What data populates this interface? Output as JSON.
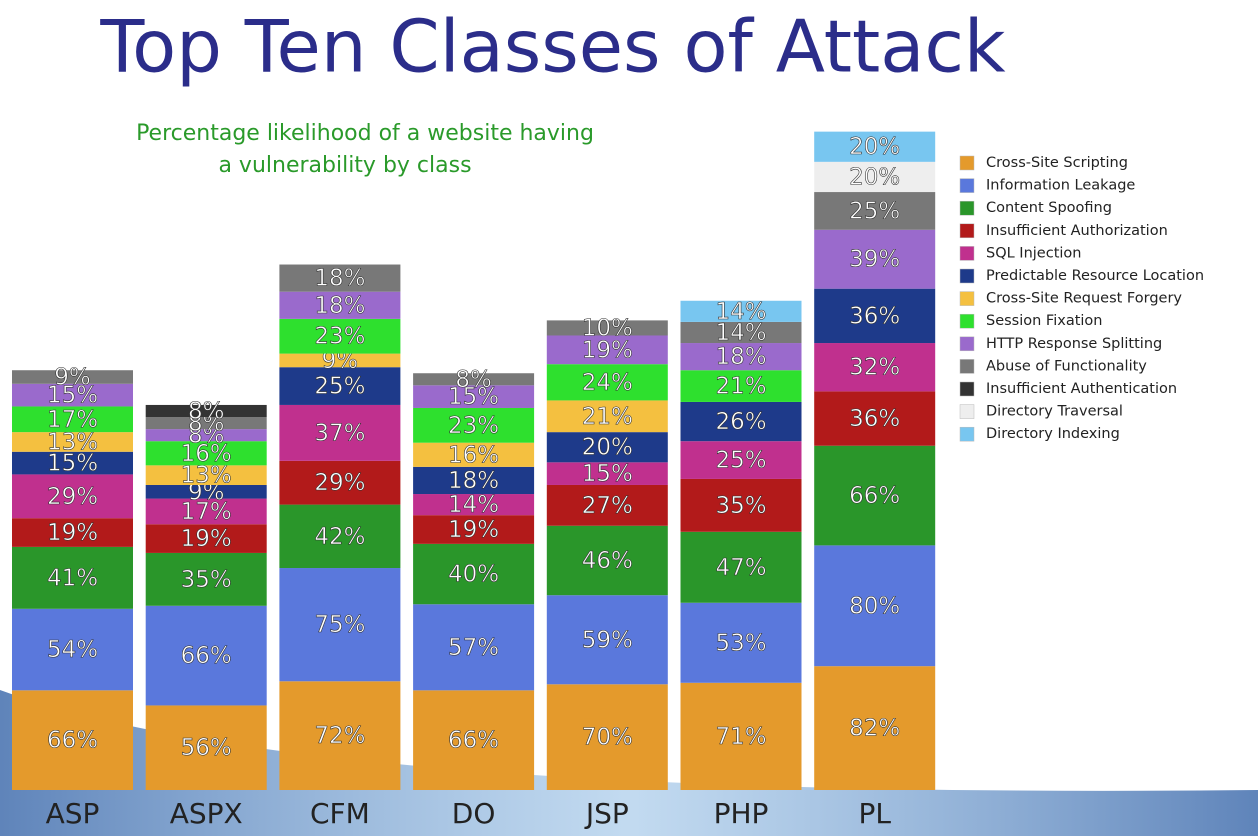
{
  "chart_data": {
    "type": "stacked-bar",
    "title": "Top Ten Classes of Attack",
    "subtitle": [
      "Percentage likelihood of a website having",
      "a vulnerability by class"
    ],
    "categories": [
      "ASP",
      "ASPX",
      "CFM",
      "DO",
      "JSP",
      "PHP",
      "PL"
    ],
    "series": [
      {
        "name": "Cross-Site Scripting",
        "color": "#e49a2c",
        "values": [
          66,
          56,
          72,
          66,
          70,
          71,
          82
        ],
        "value_labels": [
          "66%",
          "56%",
          "72%",
          "66%",
          "70%",
          "71%",
          "82%"
        ]
      },
      {
        "name": "Information Leakage",
        "color": "#5a78dc",
        "values": [
          54,
          66,
          75,
          57,
          59,
          53,
          80
        ],
        "value_labels": [
          "54%",
          "66%",
          "75%",
          "57%",
          "59%",
          "53%",
          "80%"
        ]
      },
      {
        "name": "Content Spoofing",
        "color": "#2a962a",
        "values": [
          41,
          35,
          42,
          40,
          46,
          47,
          66
        ],
        "value_labels": [
          "41%",
          "35%",
          "42%",
          "40%",
          "46%",
          "47%",
          "66%"
        ]
      },
      {
        "name": "Insufficient Authorization",
        "color": "#b21a1a",
        "values": [
          19,
          19,
          29,
          19,
          27,
          35,
          36
        ],
        "value_labels": [
          "19%",
          "19%",
          "29%",
          "19%",
          "27%",
          "35%",
          "36%"
        ]
      },
      {
        "name": "SQL Injection",
        "color": "#c0308e",
        "values": [
          29,
          17,
          37,
          14,
          15,
          25,
          32
        ],
        "value_labels": [
          "29%",
          "17%",
          "37%",
          "14%",
          "15%",
          "25%",
          "32%"
        ]
      },
      {
        "name": "Predictable Resource Location",
        "color": "#1e3a8a",
        "values": [
          15,
          9,
          25,
          18,
          20,
          26,
          36
        ],
        "value_labels": [
          "15%",
          "9%",
          "25%",
          "18%",
          "20%",
          "26%",
          "36%"
        ]
      },
      {
        "name": "Cross-Site Request Forgery",
        "color": "#f4c040",
        "values": [
          13,
          13,
          9,
          16,
          21,
          null,
          null
        ],
        "value_labels": [
          "13%",
          "13%",
          "9%",
          "16%",
          "21%",
          null,
          null
        ]
      },
      {
        "name": "Session Fixation",
        "color": "#2ee02e",
        "values": [
          17,
          16,
          23,
          23,
          24,
          21,
          null
        ],
        "value_labels": [
          "17%",
          "16%",
          "23%",
          "23%",
          "24%",
          "21%",
          null
        ]
      },
      {
        "name": "HTTP Response Splitting",
        "color": "#9a6acc",
        "values": [
          15,
          8,
          18,
          15,
          19,
          18,
          39
        ],
        "value_labels": [
          "15%",
          "8%",
          "18%",
          "15%",
          "19%",
          "18%",
          "39%"
        ]
      },
      {
        "name": "Abuse of Functionality",
        "color": "#787878",
        "values": [
          9,
          8,
          18,
          8,
          10,
          14,
          25
        ],
        "value_labels": [
          "9%",
          "8%",
          "18%",
          "8%",
          "10%",
          "14%",
          "25%"
        ]
      },
      {
        "name": "Insufficient Authentication",
        "color": "#333333",
        "values": [
          null,
          8,
          null,
          null,
          null,
          null,
          null
        ],
        "value_labels": [
          null,
          "8%",
          null,
          null,
          null,
          null,
          null
        ]
      },
      {
        "name": "Directory Traversal",
        "color": "#eeeeee",
        "values": [
          null,
          null,
          null,
          null,
          null,
          null,
          20
        ],
        "value_labels": [
          null,
          null,
          null,
          null,
          null,
          null,
          "20%"
        ]
      },
      {
        "name": "Directory Indexing",
        "color": "#78c6f0",
        "values": [
          null,
          null,
          null,
          null,
          null,
          14,
          20
        ],
        "value_labels": [
          null,
          null,
          null,
          null,
          null,
          "14%",
          "20%"
        ]
      }
    ]
  }
}
